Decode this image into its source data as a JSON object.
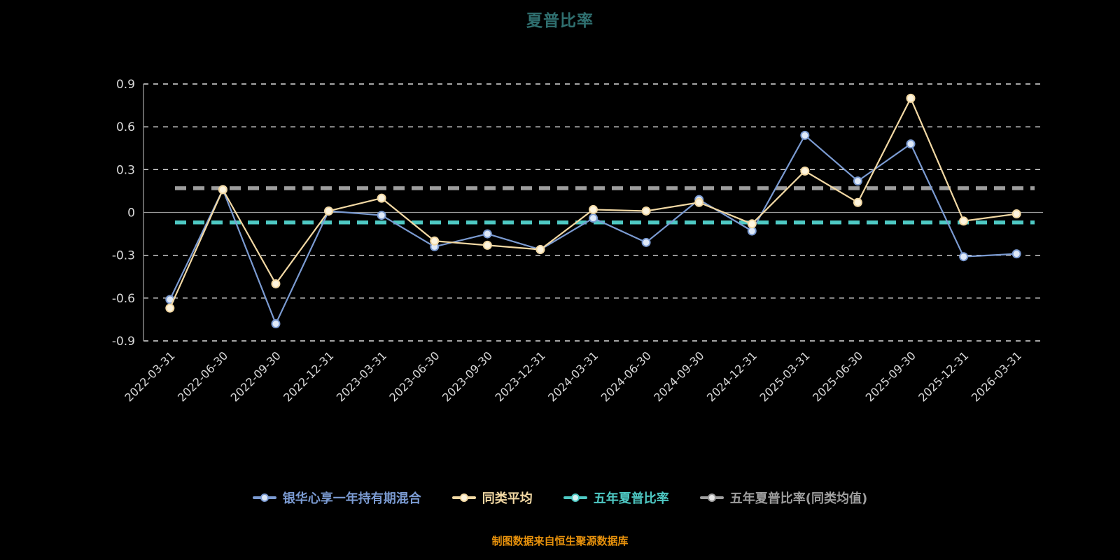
{
  "title": "夏普比率",
  "footer": "制图数据来自恒生聚源数据库",
  "colors": {
    "background": "#000000",
    "title": "#2f6f6f",
    "axis_label": "#d9d9d9",
    "grid": "#e8e8e8",
    "zero_axis": "#9a9a9a",
    "footer": "#e8920c"
  },
  "chart_data": {
    "type": "line",
    "title": "夏普比率",
    "x": [
      "2022-03-31",
      "2022-06-30",
      "2022-09-30",
      "2022-12-31",
      "2023-03-31",
      "2023-06-30",
      "2023-09-30",
      "2023-12-31",
      "2024-03-31",
      "2024-06-30",
      "2024-09-30",
      "2024-12-31",
      "2025-03-31",
      "2025-06-30",
      "2025-09-30",
      "2025-12-31",
      "2026-03-31"
    ],
    "series": [
      {
        "name": "银华心享一年持有期混合",
        "color": "#7b9bd2",
        "marker_fill": "#dfe9f8",
        "values": [
          -0.61,
          0.16,
          -0.78,
          0.01,
          -0.02,
          -0.24,
          -0.15,
          -0.26,
          -0.04,
          -0.21,
          0.09,
          -0.13,
          0.54,
          0.22,
          0.48,
          -0.31,
          -0.29
        ]
      },
      {
        "name": "同类平均",
        "color": "#f3d9a4",
        "marker_fill": "#fdf4de",
        "values": [
          -0.67,
          0.16,
          -0.5,
          0.01,
          0.1,
          -0.2,
          -0.23,
          -0.26,
          0.02,
          0.01,
          0.07,
          -0.08,
          0.29,
          0.07,
          0.8,
          -0.06,
          -0.01
        ]
      }
    ],
    "reference_lines": [
      {
        "name": "五年夏普比率",
        "value": -0.07,
        "color": "#4ec9c4"
      },
      {
        "name": "五年夏普比率(同类均值)",
        "value": 0.17,
        "color": "#9e9e9e"
      }
    ],
    "ylim": [
      -0.9,
      0.9
    ],
    "yticks": [
      0.9,
      0.6,
      0.3,
      0,
      -0.3,
      -0.6,
      -0.9
    ],
    "grid": true,
    "legend_position": "bottom"
  },
  "legend": [
    {
      "label": "银华心享一年持有期混合",
      "color": "#7b9bd2",
      "fill": "#dfe9f8"
    },
    {
      "label": "同类平均",
      "color": "#f3d9a4",
      "fill": "#fdf4de"
    },
    {
      "label": "五年夏普比率",
      "color": "#4ec9c4",
      "fill": "#d8f4f3"
    },
    {
      "label": "五年夏普比率(同类均值)",
      "color": "#9e9e9e",
      "fill": "#e8e8e8"
    }
  ]
}
